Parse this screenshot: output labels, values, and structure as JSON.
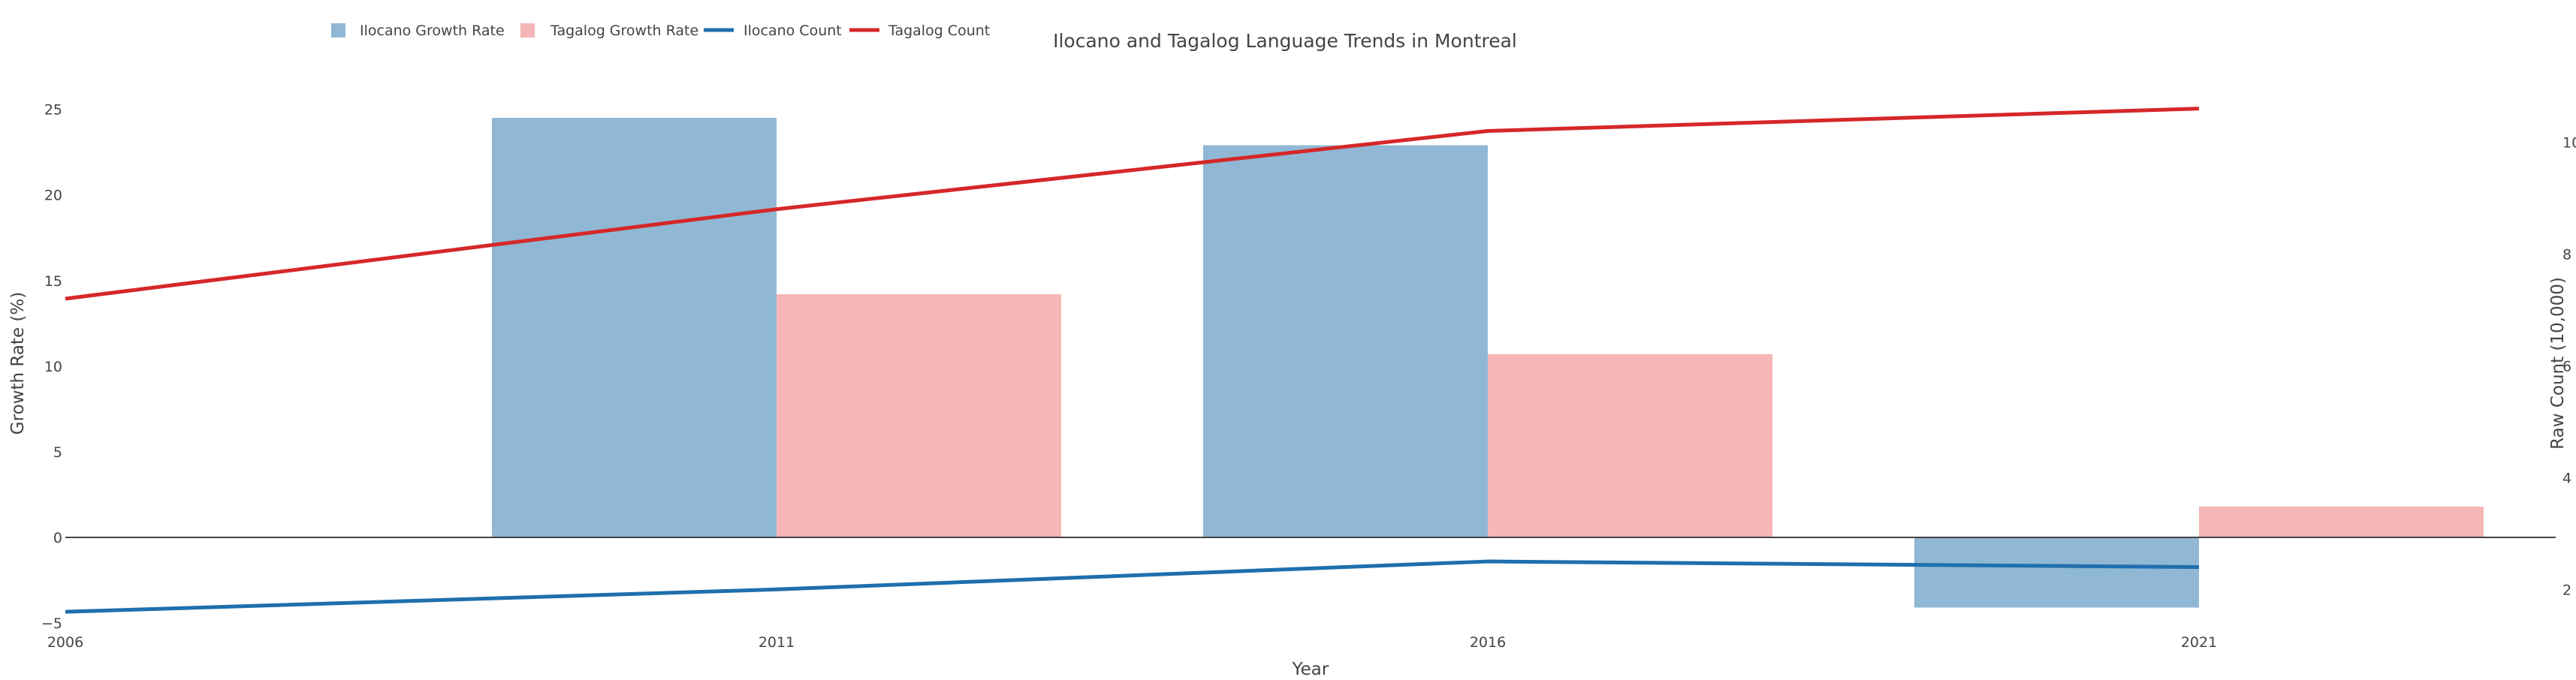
{
  "chart_data": {
    "type": "bar",
    "title": "Ilocano and Tagalog Language Trends in Montreal",
    "xlabel": "Year",
    "ylabel": "Growth Rate (%)",
    "y2label": "Raw Count (10,000)",
    "x_ticks": [
      "2006",
      "2011",
      "2016",
      "2021"
    ],
    "ylim": [
      -5,
      27
    ],
    "y_ticks": [
      "−5",
      "0",
      "5",
      "10",
      "15",
      "20",
      "25"
    ],
    "y2lim": [
      1.4,
      11.2
    ],
    "y2_ticks": [
      "2",
      "4",
      "6",
      "8",
      "10"
    ],
    "legend_position": "top-left",
    "grid": false,
    "bar_series": [
      {
        "name": "Ilocano Growth Rate",
        "color": "#90b8d5",
        "x": [
          "2011",
          "2016",
          "2021"
        ],
        "values": [
          24.5,
          22.9,
          -4.1
        ]
      },
      {
        "name": "Tagalog Growth Rate",
        "color": "#f4b6b6",
        "x": [
          "2011",
          "2016",
          "2021"
        ],
        "values": [
          14.2,
          10.7,
          1.8
        ]
      }
    ],
    "line_series": [
      {
        "name": "Ilocano Count",
        "color": "#1f6fad",
        "x": [
          "2006",
          "2011",
          "2016",
          "2021"
        ],
        "values": [
          1.6,
          2.0,
          2.5,
          2.4
        ]
      },
      {
        "name": "Tagalog Count",
        "color": "#d62728",
        "x": [
          "2006",
          "2011",
          "2016",
          "2021"
        ],
        "values": [
          7.2,
          8.8,
          10.2,
          10.6
        ]
      }
    ]
  }
}
